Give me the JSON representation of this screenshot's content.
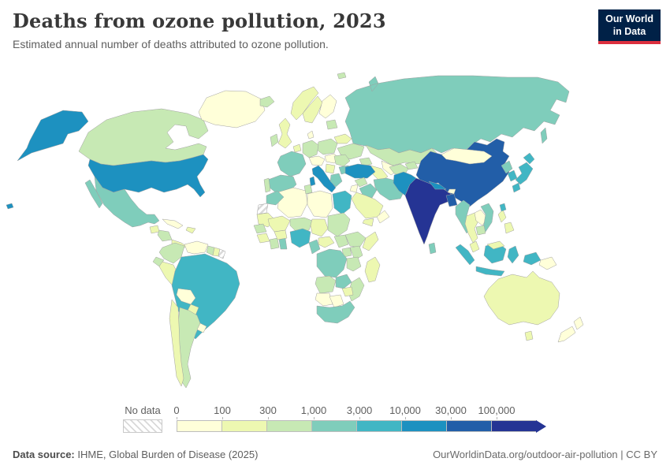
{
  "header": {
    "title": "Deaths from ozone pollution, 2023",
    "subtitle": "Estimated annual number of deaths attributed to ozone pollution.",
    "logo": {
      "line1": "Our World",
      "line2": "in Data",
      "bg": "#002147",
      "accent": "#dc2f3e"
    }
  },
  "legend": {
    "no_data_label": "No data",
    "tick_labels": [
      "0",
      "100",
      "300",
      "1,000",
      "3,000",
      "10,000",
      "30,000",
      "100,000"
    ]
  },
  "footer": {
    "source_label": "Data source:",
    "source_text": " IHME, Global Burden of Disease (2025)",
    "credit": "OurWorldinData.org/outdoor-air-pollution | CC BY"
  },
  "map": {
    "border_color": "#a0a0a0",
    "ocean_color": "#ffffff"
  },
  "chart_data": {
    "type": "choropleth",
    "title": "Deaths from ozone pollution, 2023",
    "unit": "deaths",
    "legend_scale": "log-binned",
    "no_data_label": "No data",
    "bins": [
      {
        "label": "0 – 100",
        "color": "#ffffd9"
      },
      {
        "label": "100 – 300",
        "color": "#edf8b1"
      },
      {
        "label": "300 – 1,000",
        "color": "#c7e9b4"
      },
      {
        "label": "1,000 – 3,000",
        "color": "#7fcdbb"
      },
      {
        "label": "3,000 – 10,000",
        "color": "#41b6c4"
      },
      {
        "label": "10,000 – 30,000",
        "color": "#1d91c0"
      },
      {
        "label": "30,000 – 100,000",
        "color": "#225ea8"
      },
      {
        "label": "100,000+",
        "color": "#253494"
      }
    ],
    "countries": {
      "greenland": {
        "name": "Greenland",
        "bin": 0
      },
      "canada": {
        "name": "Canada",
        "bin": 2
      },
      "usa": {
        "name": "United States",
        "bin": 5
      },
      "mexico": {
        "name": "Mexico",
        "bin": 3
      },
      "guatemala": {
        "name": "Guatemala",
        "bin": 1
      },
      "honduras": {
        "name": "Honduras & Nicaragua",
        "bin": 2
      },
      "panama": {
        "name": "Costa Rica & Panama",
        "bin": 1
      },
      "cuba": {
        "name": "Cuba",
        "bin": 0
      },
      "hispaniola": {
        "name": "Haiti & Dominican Republic",
        "bin": 1
      },
      "colombia": {
        "name": "Colombia",
        "bin": 2
      },
      "venezuela": {
        "name": "Venezuela",
        "bin": 0
      },
      "guyana": {
        "name": "Guyana",
        "bin": 2
      },
      "suriname": {
        "name": "Suriname",
        "bin": 1
      },
      "french_guiana": {
        "name": "French Guiana",
        "bin": null
      },
      "ecuador": {
        "name": "Ecuador",
        "bin": 2
      },
      "peru": {
        "name": "Peru",
        "bin": 1
      },
      "brazil": {
        "name": "Brazil",
        "bin": 4
      },
      "bolivia": {
        "name": "Bolivia",
        "bin": 0
      },
      "paraguay": {
        "name": "Paraguay",
        "bin": 1
      },
      "argentina": {
        "name": "Argentina",
        "bin": 2
      },
      "chile": {
        "name": "Chile",
        "bin": 1
      },
      "uruguay": {
        "name": "Uruguay",
        "bin": 0
      },
      "iceland": {
        "name": "Iceland",
        "bin": 2
      },
      "norway": {
        "name": "Norway",
        "bin": 1
      },
      "sweden": {
        "name": "Sweden",
        "bin": 1
      },
      "finland": {
        "name": "Finland",
        "bin": 0
      },
      "baltics": {
        "name": "Baltic states",
        "bin": 2
      },
      "uk": {
        "name": "United Kingdom",
        "bin": 1
      },
      "ireland": {
        "name": "Ireland",
        "bin": 2
      },
      "france": {
        "name": "France",
        "bin": 3
      },
      "spain": {
        "name": "Spain",
        "bin": 3
      },
      "portugal": {
        "name": "Portugal",
        "bin": 2
      },
      "benelux": {
        "name": "Belgium & Netherlands",
        "bin": 1
      },
      "germany": {
        "name": "Germany",
        "bin": 2
      },
      "denmark": {
        "name": "Denmark",
        "bin": 0
      },
      "poland": {
        "name": "Poland",
        "bin": 2
      },
      "czech_austria": {
        "name": "Czechia & Austria",
        "bin": 0
      },
      "italy": {
        "name": "Italy",
        "bin": 5
      },
      "hungary": {
        "name": "Hungary",
        "bin": 0
      },
      "romania": {
        "name": "Romania",
        "bin": 2
      },
      "balkans": {
        "name": "Western Balkans",
        "bin": 1
      },
      "greece": {
        "name": "Greece",
        "bin": 3
      },
      "bulgaria": {
        "name": "Bulgaria",
        "bin": 3
      },
      "ukraine": {
        "name": "Ukraine",
        "bin": 2
      },
      "belarus": {
        "name": "Belarus",
        "bin": 1
      },
      "svalbard": {
        "name": "Svalbard",
        "bin": 2
      },
      "russia": {
        "name": "Russia",
        "bin": 3
      },
      "kazakhstan": {
        "name": "Kazakhstan",
        "bin": 2
      },
      "uzbekistan": {
        "name": "Uzbekistan",
        "bin": 0
      },
      "turkmenistan": {
        "name": "Turkmenistan",
        "bin": 1
      },
      "kyrgyzstan": {
        "name": "Kyrgyzstan & Tajikistan",
        "bin": 2
      },
      "caucasus": {
        "name": "Caucasus",
        "bin": 2
      },
      "turkey": {
        "name": "Turkey",
        "bin": 5
      },
      "syria": {
        "name": "Syria",
        "bin": 2
      },
      "israel_jordan": {
        "name": "Israel & Jordan",
        "bin": 0
      },
      "iraq": {
        "name": "Iraq",
        "bin": 3
      },
      "iran": {
        "name": "Iran",
        "bin": 3
      },
      "saudi_arabia": {
        "name": "Saudi Arabia",
        "bin": 1
      },
      "yemen": {
        "name": "Yemen",
        "bin": 1
      },
      "oman": {
        "name": "Oman",
        "bin": 0
      },
      "afghanistan": {
        "name": "Afghanistan",
        "bin": 2
      },
      "pakistan": {
        "name": "Pakistan",
        "bin": 5
      },
      "india": {
        "name": "India",
        "bin": 7
      },
      "nepal": {
        "name": "Nepal",
        "bin": 5
      },
      "bhutan": {
        "name": "Bhutan",
        "bin": 0
      },
      "bangladesh": {
        "name": "Bangladesh",
        "bin": 6
      },
      "sri_lanka": {
        "name": "Sri Lanka",
        "bin": 3
      },
      "china": {
        "name": "China",
        "bin": 6
      },
      "mongolia": {
        "name": "Mongolia",
        "bin": 0
      },
      "myanmar": {
        "name": "Myanmar",
        "bin": 3
      },
      "thailand": {
        "name": "Thailand",
        "bin": 1
      },
      "laos": {
        "name": "Laos",
        "bin": 0
      },
      "vietnam": {
        "name": "Vietnam",
        "bin": 3
      },
      "cambodia": {
        "name": "Cambodia",
        "bin": 2
      },
      "malaysia": {
        "name": "Malaysia",
        "bin": 1
      },
      "indonesia": {
        "name": "Indonesia",
        "bin": 4
      },
      "philippines": {
        "name": "Philippines",
        "bin": 1
      },
      "taiwan": {
        "name": "Taiwan",
        "bin": 4
      },
      "north_korea": {
        "name": "North Korea",
        "bin": 3
      },
      "south_korea": {
        "name": "South Korea",
        "bin": 4
      },
      "japan": {
        "name": "Japan",
        "bin": 4
      },
      "papua_new_guinea": {
        "name": "Papua New Guinea",
        "bin": 0
      },
      "australia": {
        "name": "Australia",
        "bin": 1
      },
      "new_zealand": {
        "name": "New Zealand",
        "bin": 0
      },
      "morocco": {
        "name": "Morocco",
        "bin": 3
      },
      "western_sahara": {
        "name": "Western Sahara",
        "bin": null
      },
      "algeria": {
        "name": "Algeria",
        "bin": 0
      },
      "tunisia": {
        "name": "Tunisia",
        "bin": 2
      },
      "libya": {
        "name": "Libya",
        "bin": 0
      },
      "egypt": {
        "name": "Egypt",
        "bin": 4
      },
      "mauritania": {
        "name": "Mauritania",
        "bin": 1
      },
      "mali": {
        "name": "Mali",
        "bin": 1
      },
      "niger": {
        "name": "Niger",
        "bin": 2
      },
      "chad": {
        "name": "Chad",
        "bin": 1
      },
      "sudan": {
        "name": "Sudan",
        "bin": 2
      },
      "senegal": {
        "name": "Senegal",
        "bin": 2
      },
      "guinea": {
        "name": "Guinea",
        "bin": 1
      },
      "ivory_coast": {
        "name": "Côte d'Ivoire",
        "bin": 2
      },
      "ghana": {
        "name": "Ghana",
        "bin": 3
      },
      "burkina_faso": {
        "name": "Burkina Faso",
        "bin": 1
      },
      "nigeria": {
        "name": "Nigeria",
        "bin": 4
      },
      "cameroon": {
        "name": "Cameroon",
        "bin": 3
      },
      "central_african_republic": {
        "name": "Central African Republic",
        "bin": 1
      },
      "south_sudan": {
        "name": "South Sudan",
        "bin": 2
      },
      "ethiopia": {
        "name": "Ethiopia",
        "bin": 2
      },
      "somalia": {
        "name": "Somalia",
        "bin": 1
      },
      "kenya": {
        "name": "Kenya",
        "bin": 2
      },
      "uganda": {
        "name": "Uganda",
        "bin": 2
      },
      "dr_congo": {
        "name": "Democratic Republic of Congo",
        "bin": 3
      },
      "tanzania": {
        "name": "Tanzania",
        "bin": 2
      },
      "angola": {
        "name": "Angola",
        "bin": 2
      },
      "zambia": {
        "name": "Zambia",
        "bin": 3
      },
      "mozambique": {
        "name": "Mozambique",
        "bin": 2
      },
      "zimbabwe": {
        "name": "Zimbabwe",
        "bin": 1
      },
      "namibia": {
        "name": "Namibia",
        "bin": 0
      },
      "botswana": {
        "name": "Botswana",
        "bin": 0
      },
      "south_africa": {
        "name": "South Africa",
        "bin": 3
      },
      "madagascar": {
        "name": "Madagascar",
        "bin": 1
      }
    }
  }
}
